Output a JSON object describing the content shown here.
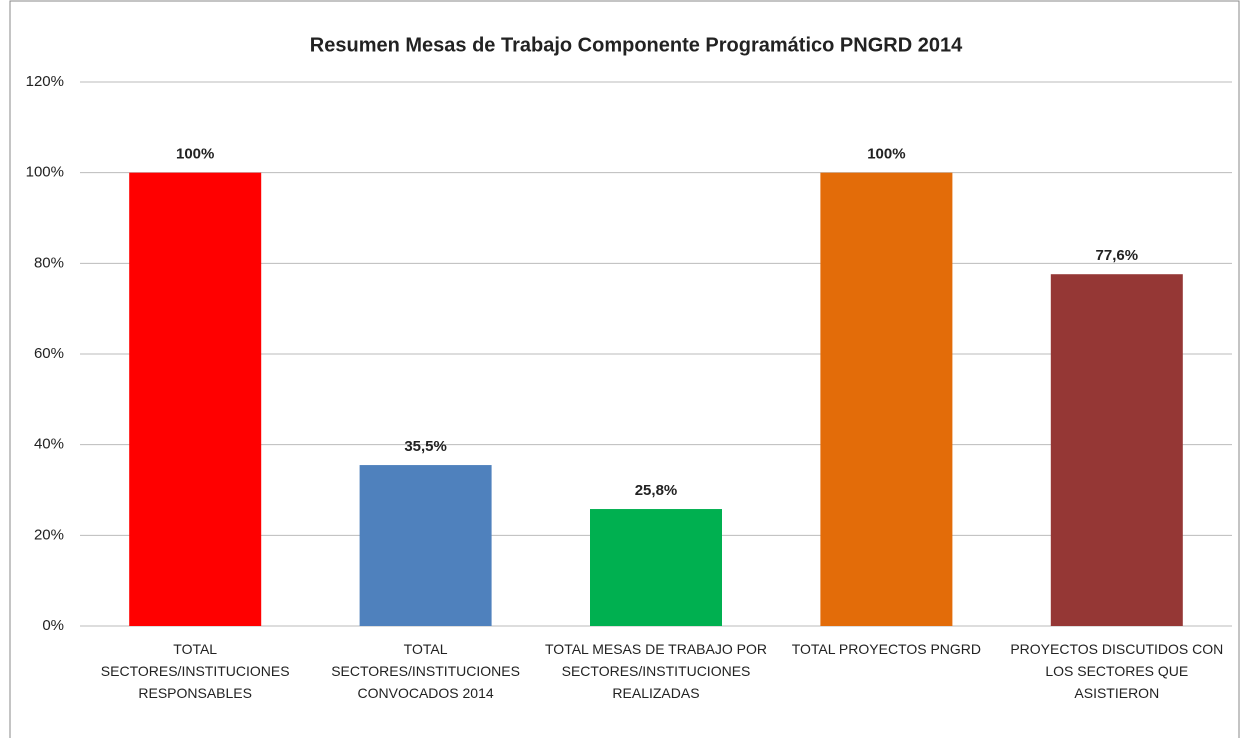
{
  "chart_data": {
    "type": "bar",
    "title": "Resumen Mesas de Trabajo Componente Programático PNGRD 2014",
    "categories": [
      "TOTAL SECTORES/INSTITUCIONES RESPONSABLES",
      "TOTAL SECTORES/INSTITUCIONES CONVOCADOS 2014",
      "TOTAL MESAS DE TRABAJO POR SECTORES/INSTITUCIONES REALIZADAS",
      "TOTAL PROYECTOS PNGRD",
      "PROYECTOS DISCUTIDOS CON LOS SECTORES QUE ASISTIERON"
    ],
    "values": [
      100,
      35.5,
      25.8,
      100,
      77.6
    ],
    "value_labels": [
      "100%",
      "35,5%",
      "25,8%",
      "100%",
      "77,6%"
    ],
    "colors": [
      "#ff0000",
      "#4f81bd",
      "#00b050",
      "#e36c09",
      "#953735"
    ],
    "ylim": [
      0,
      120
    ],
    "yticks": [
      {
        "value": 0,
        "label": "0%"
      },
      {
        "value": 20,
        "label": "20%"
      },
      {
        "value": 40,
        "label": "40%"
      },
      {
        "value": 60,
        "label": "60%"
      },
      {
        "value": 80,
        "label": "80%"
      },
      {
        "value": 100,
        "label": "100%"
      },
      {
        "value": 120,
        "label": "120%"
      }
    ],
    "grid": true
  }
}
